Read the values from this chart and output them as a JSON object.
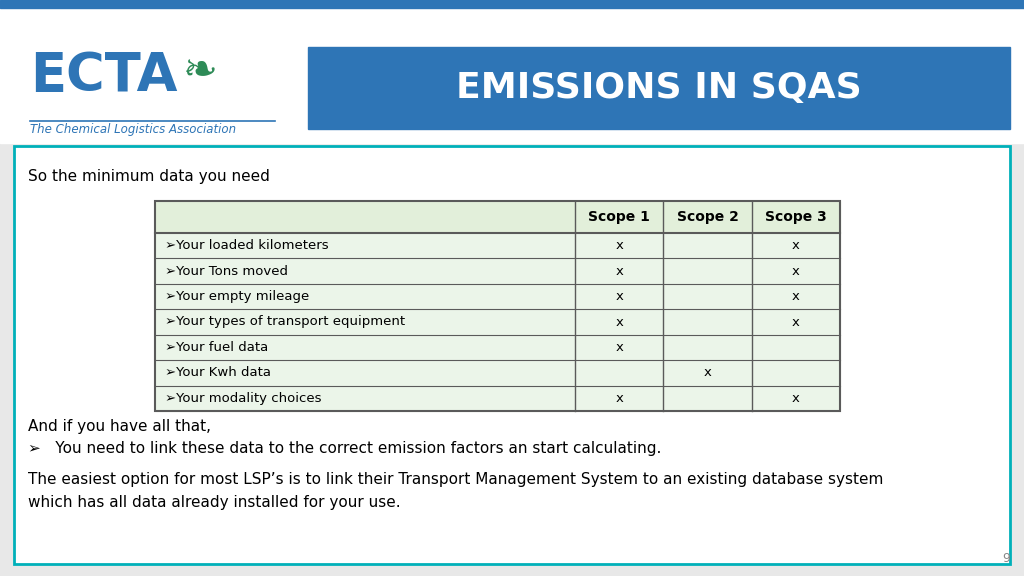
{
  "title": "EMISSIONS IN SQAS",
  "title_bg_color": "#2E75B6",
  "title_text_color": "#FFFFFF",
  "slide_bg_color": "#F0F0F0",
  "content_border_color": "#00B0B9",
  "content_bg_color": "#FFFFFF",
  "text_color": "#000000",
  "intro_text": "So the minimum data you need",
  "table_header_bg": "#E2EFDA",
  "table_row_bg": "#EBF5E9",
  "table_border_color": "#5A5A5A",
  "table_columns": [
    "",
    "Scope 1",
    "Scope 2",
    "Scope 3"
  ],
  "table_rows": [
    [
      "➢Your loaded kilometers",
      "x",
      "",
      "x"
    ],
    [
      "➢Your Tons moved",
      "x",
      "",
      "x"
    ],
    [
      "➢Your empty mileage",
      "x",
      "",
      "x"
    ],
    [
      "➢Your types of transport equipment",
      "x",
      "",
      "x"
    ],
    [
      "➢Your fuel data",
      "x",
      "",
      ""
    ],
    [
      "➢Your Kwh data",
      "",
      "x",
      ""
    ],
    [
      "➢Your modality choices",
      "x",
      "",
      "x"
    ]
  ],
  "footer_text1": "And if you have all that,",
  "footer_text2": "➢   You need to link these data to the correct emission factors an start calculating.",
  "footer_text3": "The easiest option for most LSP’s is to link their Transport Management System to an existing database system\nwhich has all data already installed for your use.",
  "page_number": "9",
  "top_bar_color": "#2E75B6",
  "ecta_color": "#2E75B6",
  "ecta_green": "#2E8B57",
  "logo_text": "ECTA",
  "logo_sub": "The Chemical Logistics Association"
}
